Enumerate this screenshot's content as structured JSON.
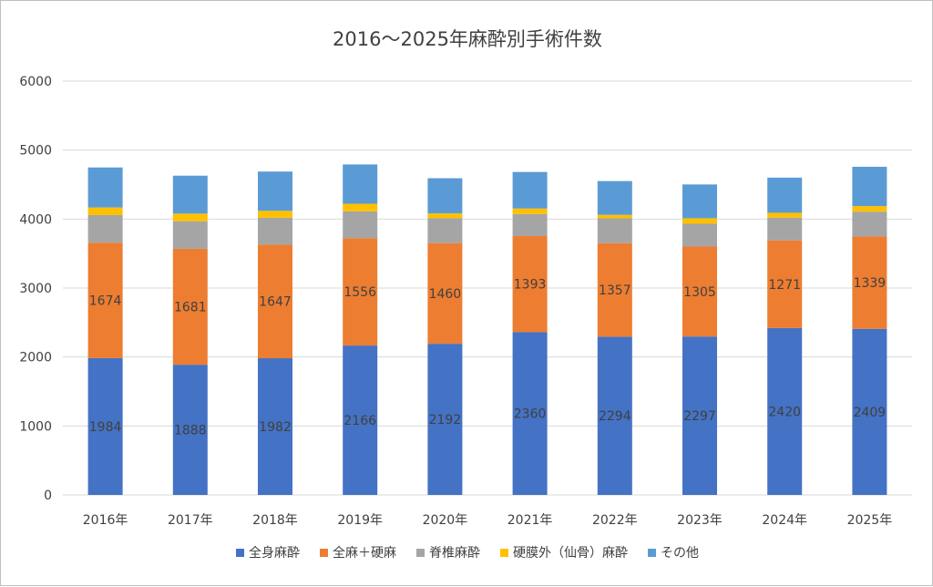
{
  "chart_data": {
    "type": "bar",
    "stacked": true,
    "title": "2016～2025年麻酔別手術件数",
    "xlabel": "",
    "ylabel": "",
    "ylim": [
      0,
      6000
    ],
    "yticks": [
      0,
      1000,
      2000,
      3000,
      4000,
      5000,
      6000
    ],
    "grid": true,
    "legend_position": "bottom",
    "categories": [
      "2016年",
      "2017年",
      "2018年",
      "2019年",
      "2020年",
      "2021年",
      "2022年",
      "2023年",
      "2024年",
      "2025年"
    ],
    "series": [
      {
        "name": "全身麻酔",
        "color": "#4472C4",
        "values": [
          1984,
          1888,
          1982,
          2166,
          2192,
          2360,
          2294,
          2297,
          2420,
          2409
        ],
        "labeled": true
      },
      {
        "name": "全麻＋硬麻",
        "color": "#ED7D31",
        "values": [
          1674,
          1681,
          1647,
          1556,
          1460,
          1393,
          1357,
          1305,
          1271,
          1339
        ],
        "labeled": true
      },
      {
        "name": "脊椎麻酔",
        "color": "#A5A5A5",
        "values": [
          400,
          400,
          390,
          390,
          360,
          320,
          360,
          330,
          330,
          360
        ],
        "labeled": false
      },
      {
        "name": "硬膜外（仙骨）麻酔",
        "color": "#FFC000",
        "values": [
          110,
          110,
          100,
          110,
          70,
          80,
          50,
          80,
          70,
          80
        ],
        "labeled": false
      },
      {
        "name": "その他",
        "color": "#5B9BD5",
        "values": [
          580,
          550,
          570,
          570,
          510,
          530,
          490,
          490,
          510,
          570
        ],
        "labeled": false
      }
    ]
  }
}
